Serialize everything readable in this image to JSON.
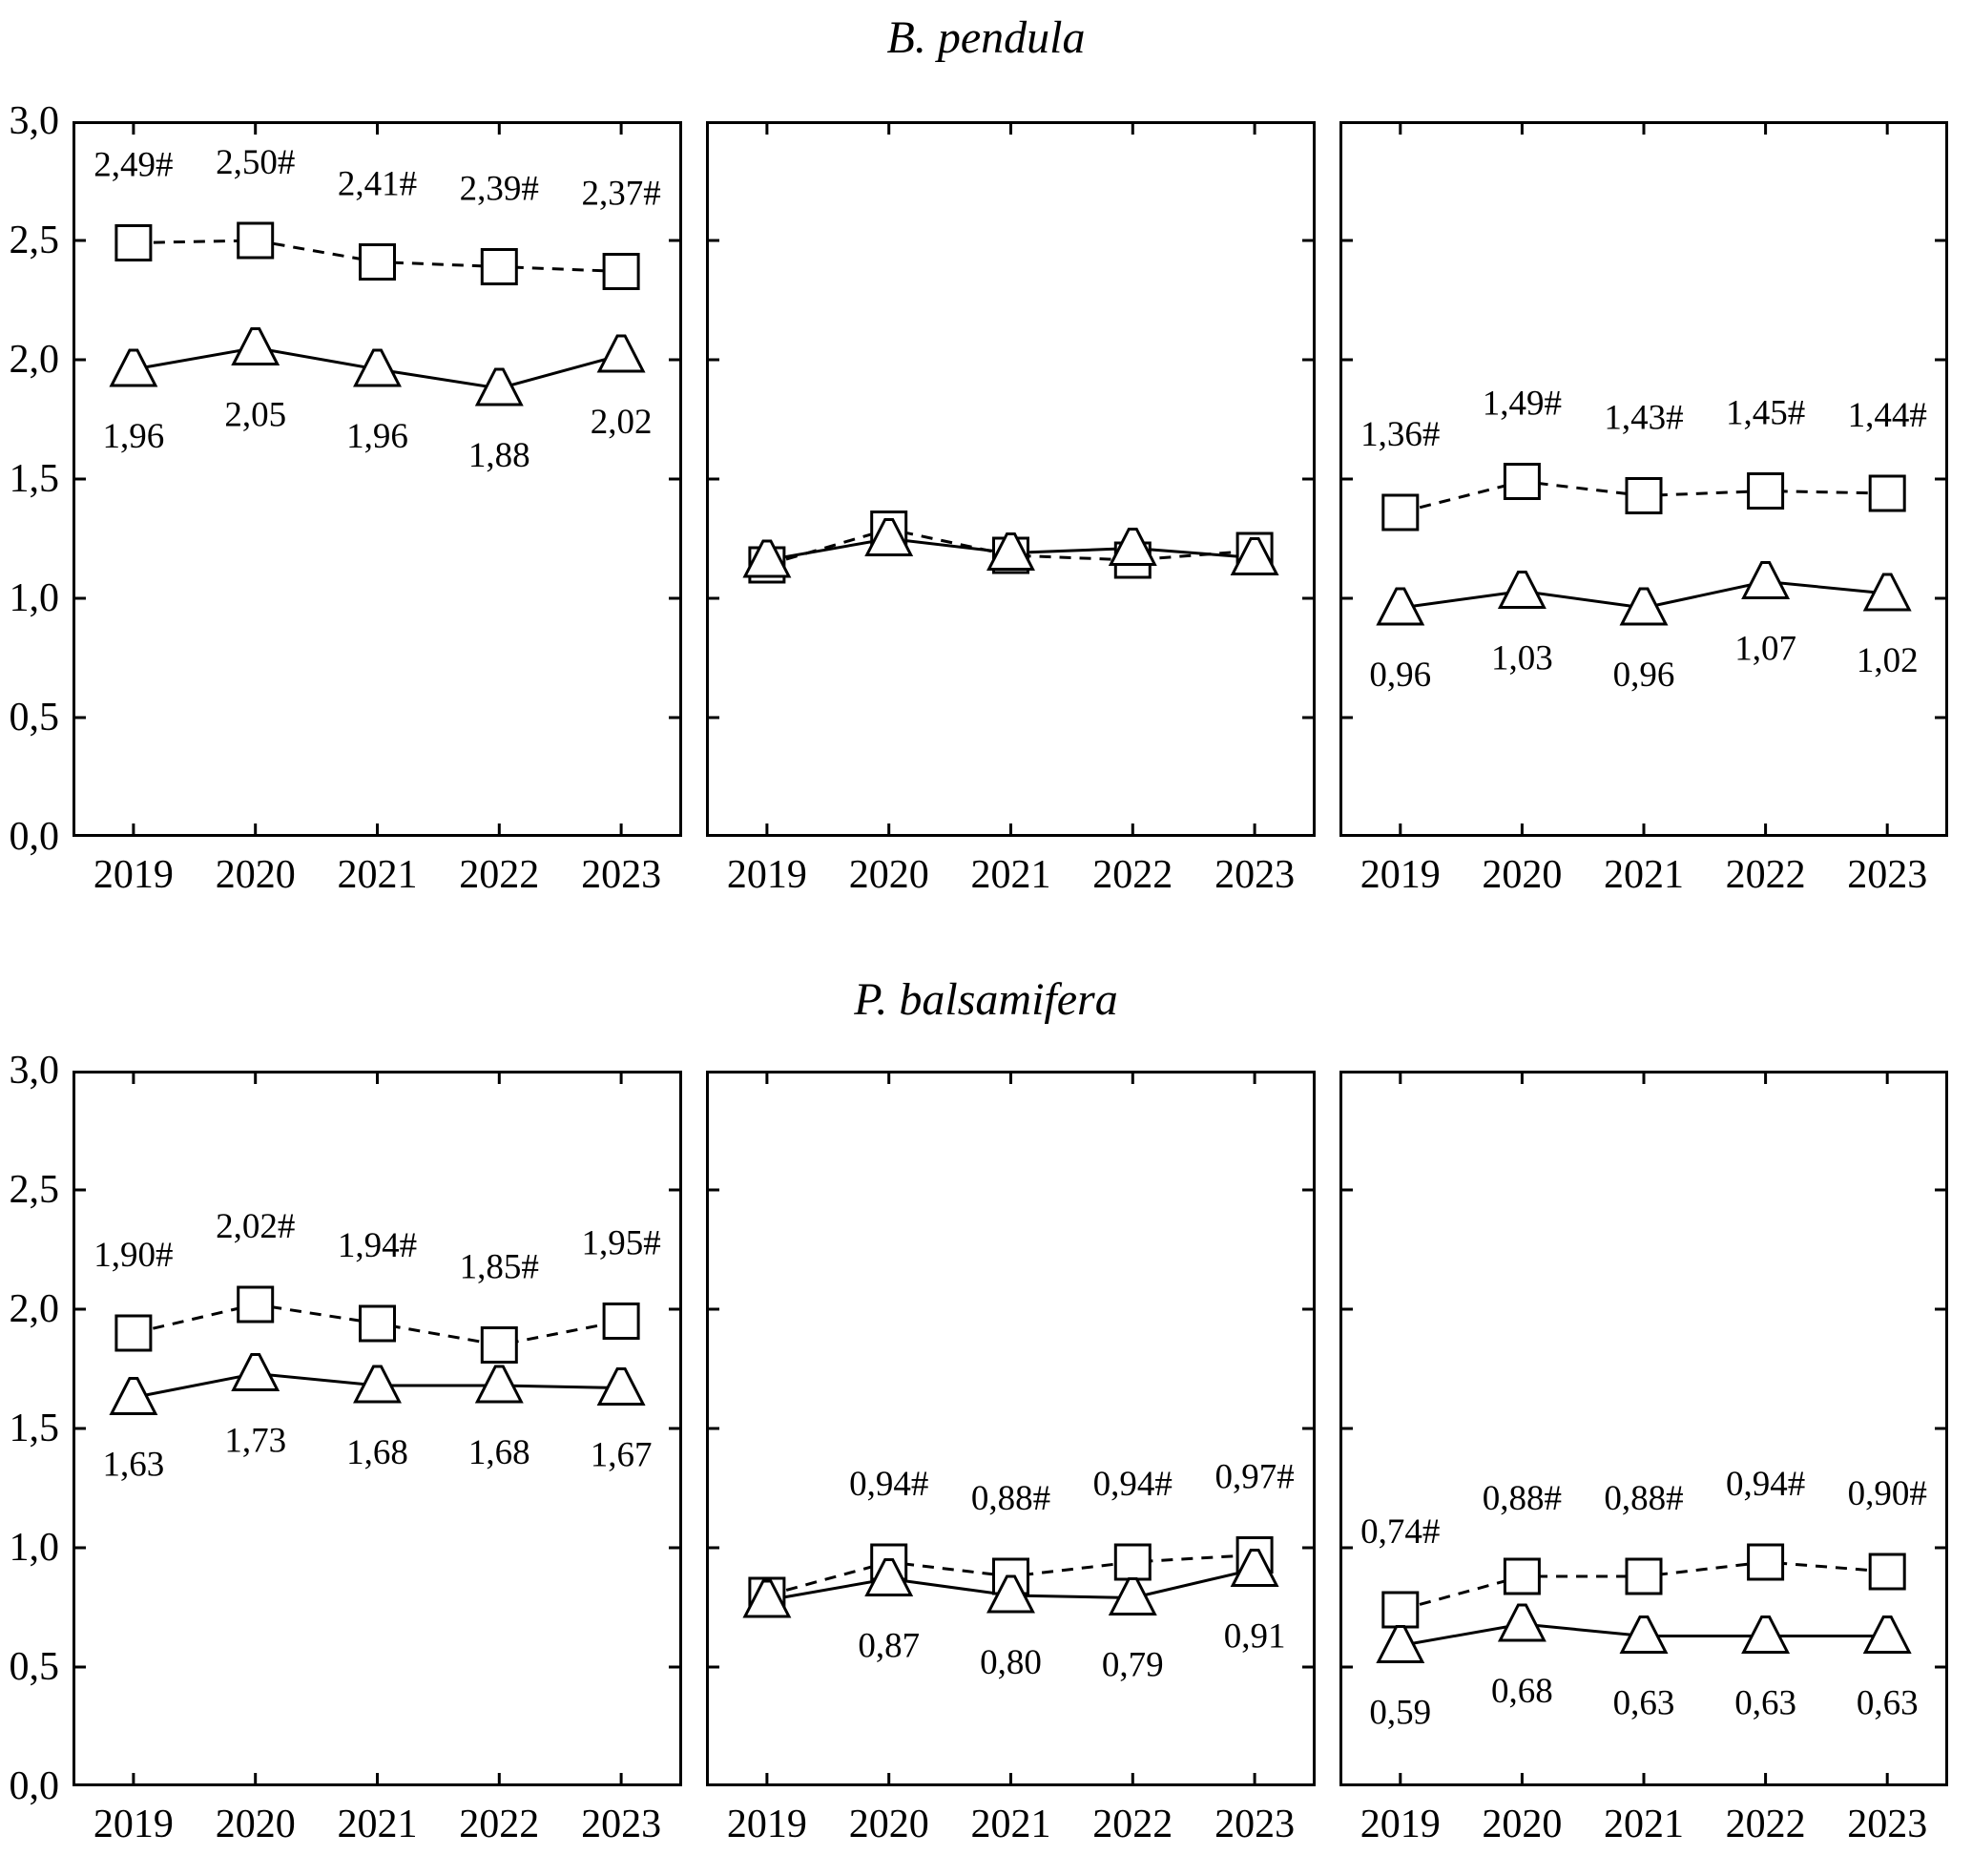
{
  "figure_titles": {
    "row1": "B. pendula",
    "row2": "P. balsamifera"
  },
  "axes": {
    "y_tick_labels": [
      "3,0",
      "2,5",
      "2,0",
      "1,5",
      "1,0",
      "0,5",
      "0,0"
    ],
    "y_min": 0.0,
    "y_max": 3.0,
    "x_tick_labels": [
      "2019",
      "2020",
      "2021",
      "2022",
      "2023"
    ]
  },
  "chart_data": [
    {
      "type": "line",
      "species": "B. pendula",
      "position": "left",
      "x": [
        "2019",
        "2020",
        "2021",
        "2022",
        "2023"
      ],
      "ylim": [
        0,
        3
      ],
      "grid": false,
      "legend": "none",
      "series": [
        {
          "name": "dashed-squares",
          "marker": "square",
          "line": "dashed",
          "values": [
            2.49,
            2.5,
            2.41,
            2.39,
            2.37
          ],
          "labels": [
            "2,49#",
            "2,50#",
            "2,41#",
            "2,39#",
            "2,37#"
          ]
        },
        {
          "name": "solid-triangles",
          "marker": "triangle",
          "line": "solid",
          "values": [
            1.96,
            2.05,
            1.96,
            1.88,
            2.02
          ],
          "labels": [
            "1,96",
            "2,05",
            "1,96",
            "1,88",
            "2,02"
          ]
        }
      ]
    },
    {
      "type": "line",
      "species": "B. pendula",
      "position": "middle",
      "x": [
        "2019",
        "2020",
        "2021",
        "2022",
        "2023"
      ],
      "ylim": [
        0,
        3
      ],
      "grid": false,
      "legend": "none",
      "series": [
        {
          "name": "dashed-squares",
          "marker": "square",
          "line": "dashed",
          "values": [
            1.14,
            1.29,
            1.18,
            1.16,
            1.2
          ],
          "labels": [
            "",
            "",
            "",
            "",
            ""
          ]
        },
        {
          "name": "solid-triangles",
          "marker": "triangle",
          "line": "solid",
          "values": [
            1.16,
            1.25,
            1.19,
            1.21,
            1.17
          ],
          "labels": [
            "",
            "",
            "",
            "",
            ""
          ]
        }
      ]
    },
    {
      "type": "line",
      "species": "B. pendula",
      "position": "right",
      "x": [
        "2019",
        "2020",
        "2021",
        "2022",
        "2023"
      ],
      "ylim": [
        0,
        3
      ],
      "grid": false,
      "legend": "none",
      "series": [
        {
          "name": "dashed-squares",
          "marker": "square",
          "line": "dashed",
          "values": [
            1.36,
            1.49,
            1.43,
            1.45,
            1.44
          ],
          "labels": [
            "1,36#",
            "1,49#",
            "1,43#",
            "1,45#",
            "1,44#"
          ]
        },
        {
          "name": "solid-triangles",
          "marker": "triangle",
          "line": "solid",
          "values": [
            0.96,
            1.03,
            0.96,
            1.07,
            1.02
          ],
          "labels": [
            "0,96",
            "1,03",
            "0,96",
            "1,07",
            "1,02"
          ]
        }
      ]
    },
    {
      "type": "line",
      "species": "P. balsamifera",
      "position": "left",
      "x": [
        "2019",
        "2020",
        "2021",
        "2022",
        "2023"
      ],
      "ylim": [
        0,
        3
      ],
      "grid": false,
      "legend": "none",
      "series": [
        {
          "name": "dashed-squares",
          "marker": "square",
          "line": "dashed",
          "values": [
            1.9,
            2.02,
            1.94,
            1.85,
            1.95
          ],
          "labels": [
            "1,90#",
            "2,02#",
            "1,94#",
            "1,85#",
            "1,95#"
          ]
        },
        {
          "name": "solid-triangles",
          "marker": "triangle",
          "line": "solid",
          "values": [
            1.63,
            1.73,
            1.68,
            1.68,
            1.67
          ],
          "labels": [
            "1,63",
            "1,73",
            "1,68",
            "1,68",
            "1,67"
          ]
        }
      ]
    },
    {
      "type": "line",
      "species": "P. balsamifera",
      "position": "middle",
      "x": [
        "2019",
        "2020",
        "2021",
        "2022",
        "2023"
      ],
      "ylim": [
        0,
        3
      ],
      "grid": false,
      "legend": "none",
      "series": [
        {
          "name": "dashed-squares",
          "marker": "square",
          "line": "dashed",
          "values": [
            0.8,
            0.94,
            0.88,
            0.94,
            0.97
          ],
          "labels": [
            "",
            "0,94#",
            "0,88#",
            "0,94#",
            "0,97#"
          ]
        },
        {
          "name": "solid-triangles",
          "marker": "triangle",
          "line": "solid",
          "values": [
            0.78,
            0.87,
            0.8,
            0.79,
            0.91
          ],
          "labels": [
            "",
            "0,87",
            "0,80",
            "0,79",
            "0,91"
          ]
        }
      ]
    },
    {
      "type": "line",
      "species": "P. balsamifera",
      "position": "right",
      "x": [
        "2019",
        "2020",
        "2021",
        "2022",
        "2023"
      ],
      "ylim": [
        0,
        3
      ],
      "grid": false,
      "legend": "none",
      "series": [
        {
          "name": "dashed-squares",
          "marker": "square",
          "line": "dashed",
          "values": [
            0.74,
            0.88,
            0.88,
            0.94,
            0.9
          ],
          "labels": [
            "0,74#",
            "0,88#",
            "0,88#",
            "0,94#",
            "0,90#"
          ]
        },
        {
          "name": "solid-triangles",
          "marker": "triangle",
          "line": "solid",
          "values": [
            0.59,
            0.68,
            0.63,
            0.63,
            0.63
          ],
          "labels": [
            "0,59",
            "0,68",
            "0,63",
            "0,63",
            "0,63"
          ]
        }
      ]
    }
  ]
}
